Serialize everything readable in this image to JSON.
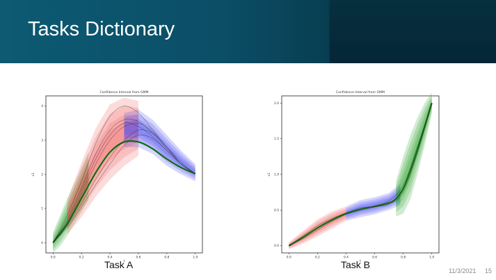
{
  "slide": {
    "title": "Tasks Dictionary",
    "date": "11/3/2021",
    "page_number": "15"
  },
  "captions": {
    "left": "Task A",
    "right": "Task B"
  },
  "colors": {
    "banner": "#0b4e66",
    "phase_green": "#2a9a2a",
    "phase_red": "#f06060",
    "phase_blue": "#5050f0",
    "mean_line": "#107010"
  },
  "chart_data": [
    {
      "type": "line",
      "title": "Confidence Interval from GMM",
      "xlabel": "t",
      "ylabel": "x1",
      "xlim": [
        -0.05,
        1.05
      ],
      "ylim": [
        -0.3,
        4.3
      ],
      "xticks": [
        "0.0",
        "0.2",
        "0.4",
        "0.6",
        "0.8",
        "1.0"
      ],
      "yticks": [
        "0",
        "1",
        "2",
        "3",
        "4"
      ],
      "bands": [
        {
          "color": "green",
          "x": [
            0.0,
            0.05,
            0.1,
            0.15,
            0.2,
            0.25
          ],
          "y": [
            0.0,
            0.35,
            0.75,
            1.15,
            1.55,
            1.95
          ],
          "width": [
            0.3,
            0.45,
            0.55,
            0.6,
            0.65,
            0.7
          ]
        },
        {
          "color": "red",
          "x": [
            0.1,
            0.2,
            0.3,
            0.4,
            0.5,
            0.6
          ],
          "y": [
            0.75,
            1.55,
            2.35,
            2.95,
            3.25,
            3.35
          ],
          "width": [
            0.5,
            0.8,
            1.0,
            1.1,
            1.0,
            0.8
          ]
        },
        {
          "color": "blue",
          "x": [
            0.5,
            0.6,
            0.7,
            0.8,
            0.9,
            1.0
          ],
          "y": [
            3.3,
            3.35,
            3.1,
            2.7,
            2.35,
            2.05
          ],
          "width": [
            0.5,
            0.55,
            0.5,
            0.45,
            0.35,
            0.25
          ]
        }
      ],
      "series": [
        {
          "values_x": [
            0.0,
            0.1,
            0.2,
            0.3,
            0.4,
            0.5,
            0.6,
            0.7,
            0.8,
            0.9,
            1.0
          ],
          "values_y": [
            0.0,
            0.55,
            1.3,
            2.05,
            2.65,
            2.95,
            2.95,
            2.75,
            2.45,
            2.2,
            2.02
          ],
          "role": "mean"
        },
        {
          "values_x": [
            0.0,
            0.1,
            0.2,
            0.3,
            0.4,
            0.5,
            0.6,
            0.7,
            0.8,
            0.9,
            1.0
          ],
          "values_y": [
            0.0,
            0.8,
            1.8,
            2.9,
            3.7,
            4.0,
            3.8,
            3.3,
            2.8,
            2.35,
            2.02
          ],
          "role": "demo"
        },
        {
          "values_x": [
            0.0,
            0.1,
            0.2,
            0.3,
            0.4,
            0.5,
            0.6,
            0.7,
            0.8,
            0.9,
            1.0
          ],
          "values_y": [
            0.0,
            0.7,
            1.6,
            2.6,
            3.3,
            3.6,
            3.55,
            3.2,
            2.75,
            2.3,
            2.02
          ],
          "role": "demo"
        },
        {
          "values_x": [
            0.0,
            0.1,
            0.2,
            0.3,
            0.4,
            0.5,
            0.6,
            0.7,
            0.8,
            0.9,
            1.0
          ],
          "values_y": [
            0.0,
            0.6,
            1.4,
            2.3,
            3.0,
            3.4,
            3.5,
            3.25,
            2.8,
            2.3,
            2.02
          ],
          "role": "demo"
        },
        {
          "values_x": [
            0.0,
            0.1,
            0.2,
            0.3,
            0.4,
            0.5,
            0.6,
            0.7,
            0.8,
            0.9,
            1.0
          ],
          "values_y": [
            0.0,
            0.5,
            1.15,
            1.85,
            2.5,
            3.0,
            3.3,
            3.2,
            2.8,
            2.35,
            2.02
          ],
          "role": "demo"
        },
        {
          "values_x": [
            0.0,
            0.1,
            0.2,
            0.3,
            0.4,
            0.5,
            0.6,
            0.7,
            0.8,
            0.9,
            1.0
          ],
          "values_y": [
            0.0,
            0.45,
            1.05,
            1.7,
            2.3,
            2.85,
            3.15,
            3.05,
            2.7,
            2.3,
            2.02
          ],
          "role": "demo"
        },
        {
          "values_x": [
            0.0,
            0.1,
            0.2,
            0.3,
            0.4,
            0.5,
            0.6,
            0.7,
            0.8,
            0.9,
            1.0
          ],
          "values_y": [
            0.0,
            0.65,
            1.5,
            2.45,
            3.15,
            3.5,
            3.4,
            3.1,
            2.7,
            2.3,
            2.02
          ],
          "role": "demo"
        }
      ]
    },
    {
      "type": "line",
      "title": "Confidence Interval from GMM",
      "xlabel": "t",
      "ylabel": "x1",
      "xlim": [
        -0.05,
        1.05
      ],
      "ylim": [
        -0.1,
        2.1
      ],
      "xticks": [
        "0.0",
        "0.2",
        "0.4",
        "0.6",
        "0.8",
        "1.0"
      ],
      "yticks": [
        "0.0",
        "0.5",
        "1.0",
        "1.5",
        "2.0"
      ],
      "bands": [
        {
          "color": "red",
          "x": [
            0.0,
            0.1,
            0.2,
            0.3,
            0.4
          ],
          "y": [
            0.0,
            0.12,
            0.25,
            0.36,
            0.45
          ],
          "width": [
            0.05,
            0.09,
            0.12,
            0.12,
            0.1
          ]
        },
        {
          "color": "blue",
          "x": [
            0.4,
            0.5,
            0.6,
            0.7,
            0.78
          ],
          "y": [
            0.45,
            0.52,
            0.56,
            0.62,
            0.72
          ],
          "width": [
            0.1,
            0.12,
            0.12,
            0.12,
            0.15
          ]
        },
        {
          "color": "green",
          "x": [
            0.75,
            0.8,
            0.85,
            0.9,
            0.95,
            1.0
          ],
          "y": [
            0.66,
            0.85,
            1.1,
            1.4,
            1.7,
            2.0
          ],
          "width": [
            0.25,
            0.4,
            0.45,
            0.4,
            0.3,
            0.15
          ]
        }
      ],
      "series": [
        {
          "values_x": [
            0.0,
            0.1,
            0.2,
            0.3,
            0.4,
            0.5,
            0.6,
            0.7,
            0.75,
            0.8,
            0.85,
            0.9,
            0.95,
            1.0
          ],
          "values_y": [
            0.0,
            0.12,
            0.25,
            0.36,
            0.45,
            0.51,
            0.55,
            0.6,
            0.66,
            0.8,
            1.05,
            1.35,
            1.67,
            2.0
          ],
          "role": "mean"
        },
        {
          "values_x": [
            0.0,
            0.1,
            0.2,
            0.3,
            0.4,
            0.5,
            0.6,
            0.7,
            0.8,
            0.9,
            1.0
          ],
          "values_y": [
            0.0,
            0.1,
            0.22,
            0.34,
            0.44,
            0.5,
            0.56,
            0.63,
            0.85,
            1.4,
            2.0
          ],
          "role": "demo"
        },
        {
          "values_x": [
            0.0,
            0.1,
            0.2,
            0.3,
            0.4,
            0.5,
            0.6,
            0.7,
            0.8,
            0.9,
            1.0
          ],
          "values_y": [
            0.0,
            0.14,
            0.28,
            0.38,
            0.46,
            0.53,
            0.55,
            0.58,
            0.75,
            1.3,
            2.0
          ],
          "role": "demo"
        }
      ]
    }
  ]
}
